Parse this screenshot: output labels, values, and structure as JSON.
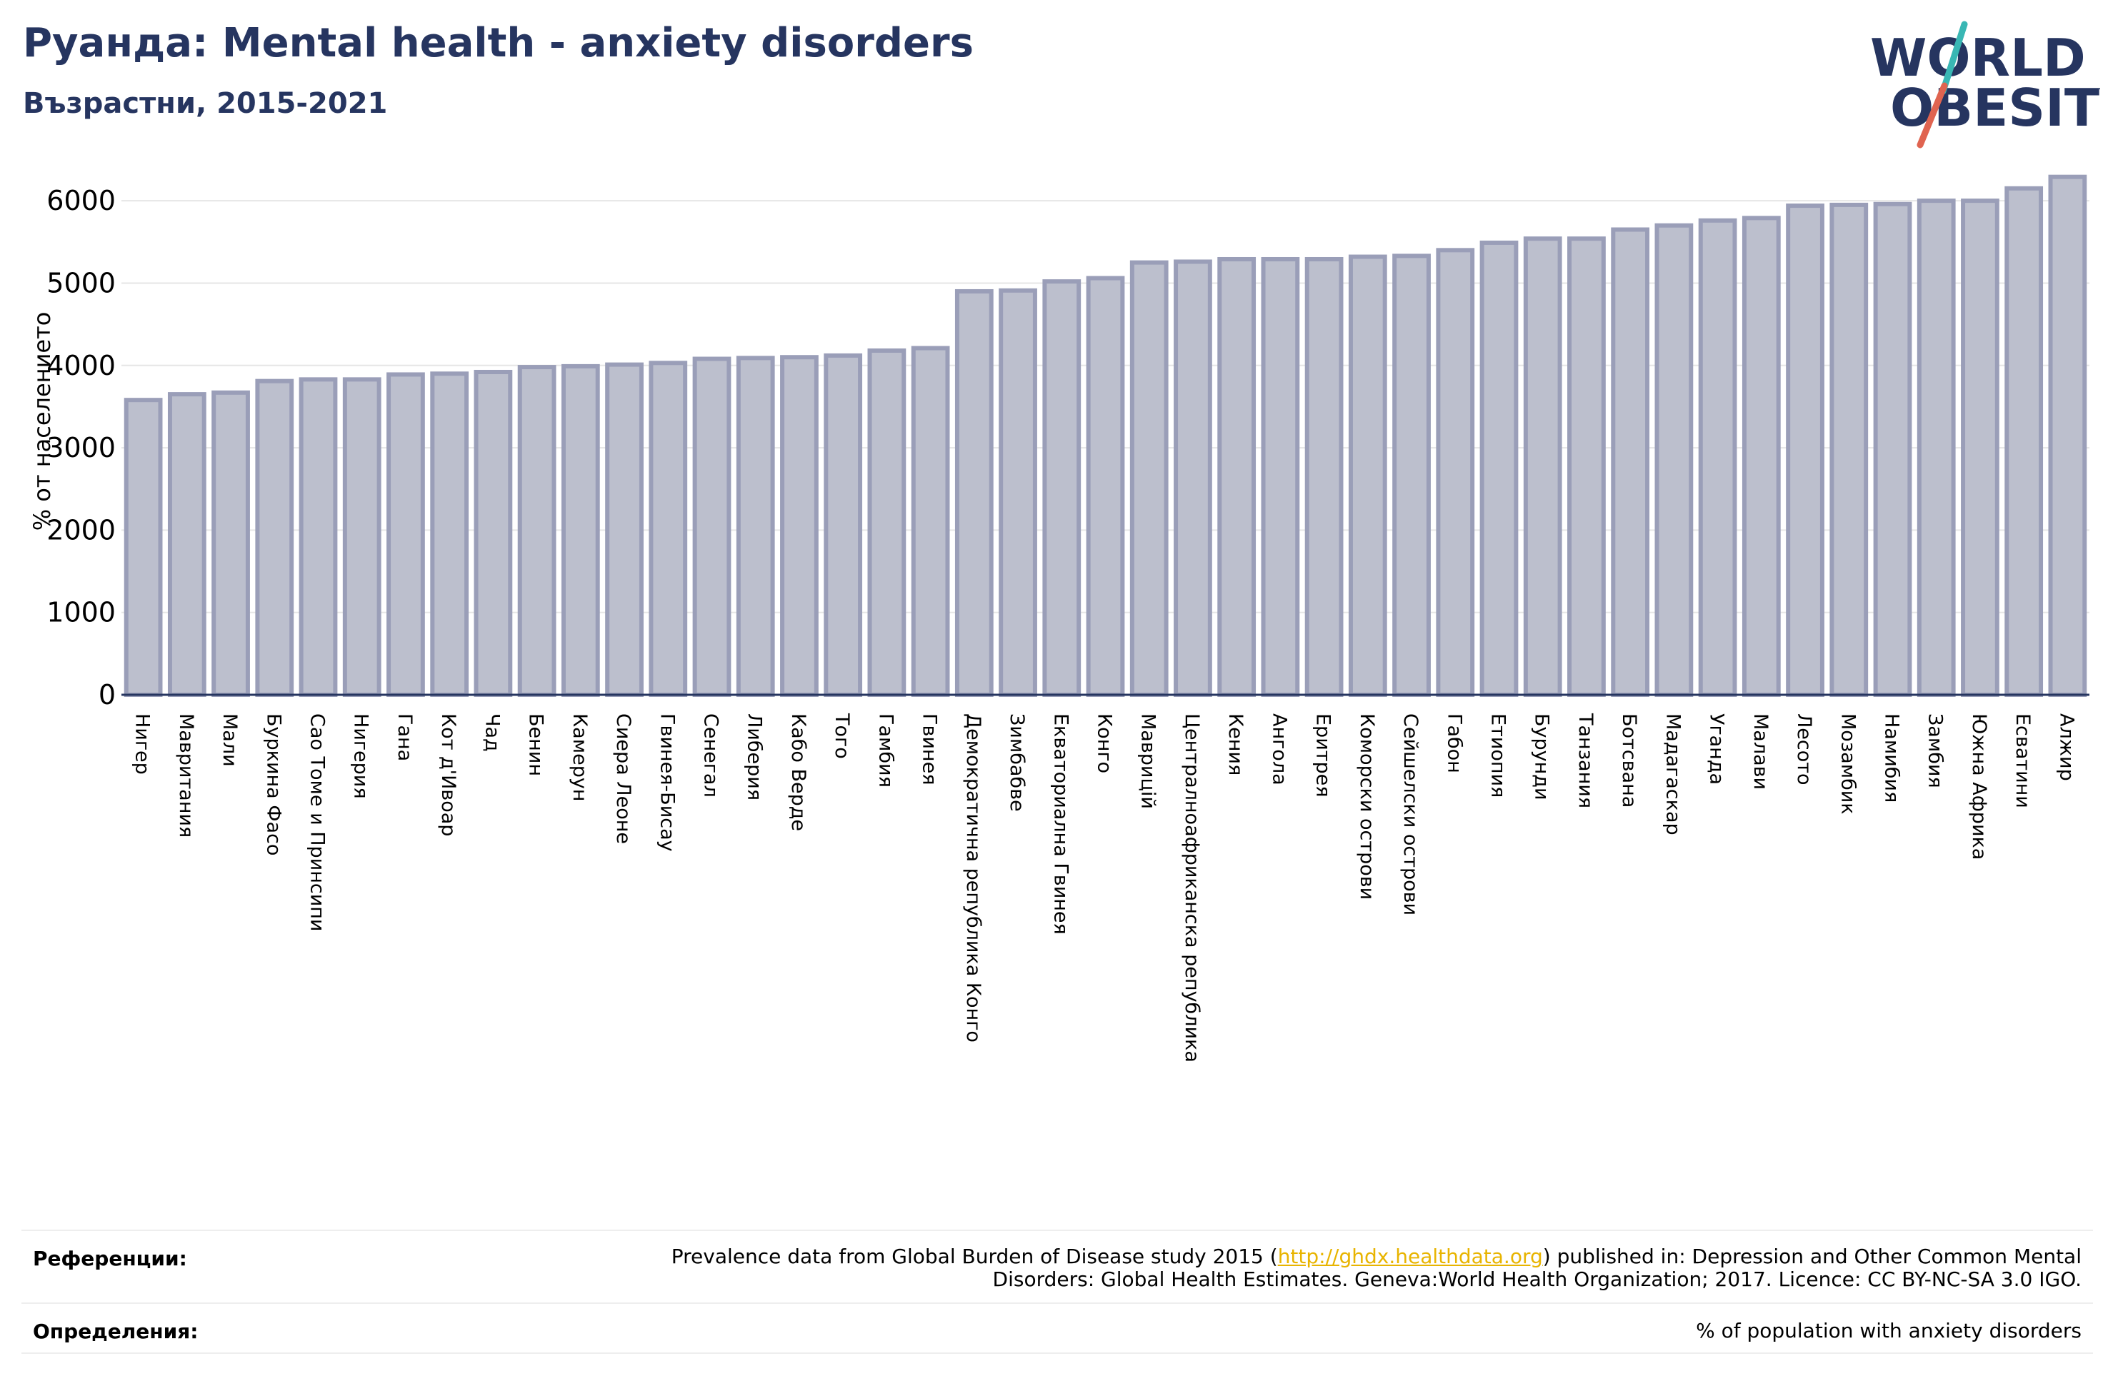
{
  "header": {
    "title": "Руанда: Mental health - anxiety disorders",
    "subtitle": "Възрастни, 2015-2021"
  },
  "logo": {
    "line1": "WORLD",
    "line2": "OBESITY"
  },
  "colors": {
    "bar_fill": "#bcbfcd",
    "bar_stroke": "#9a9eb8",
    "title": "#263560",
    "link": "#e8b400",
    "logo_teal": "#39b7b4",
    "logo_red": "#e06450"
  },
  "chart_data": {
    "type": "bar",
    "title": "Руанда: Mental health - anxiety disorders",
    "subtitle": "Възрастни, 2015-2021",
    "ylabel": "% от населението",
    "ylim": [
      0,
      6400
    ],
    "yticks": [
      0,
      1000,
      2000,
      3000,
      4000,
      5000,
      6000
    ],
    "grid": true,
    "categories": [
      "Нигер",
      "Мавритания",
      "Мали",
      "Буркина Фасо",
      "Сао Томе и Принсипи",
      "Нигерия",
      "Гана",
      "Кот д'Ивоар",
      "Чад",
      "Бенин",
      "Камерун",
      "Сиера Леоне",
      "Гвинея-Бисау",
      "Сенегал",
      "Либерия",
      "Кабо Верде",
      "Того",
      "Гамбия",
      "Гвинея",
      "Демократична република Конго",
      "Зимбабве",
      "Екваториална Гвинея",
      "Конго",
      "Маврицій",
      "Централноафриканска република",
      "Кения",
      "Ангола",
      "Еритрея",
      "Коморски острови",
      "Сейшелски острови",
      "Габон",
      "Етиопия",
      "Бурунди",
      "Танзания",
      "Ботсвана",
      "Мадагаскар",
      "Уганда",
      "Малави",
      "Лесото",
      "Мозамбик",
      "Намибия",
      "Замбия",
      "Южна Африка",
      "Есватини",
      "Алжир"
    ],
    "values": [
      3580,
      3650,
      3670,
      3810,
      3830,
      3830,
      3890,
      3900,
      3920,
      3980,
      3990,
      4010,
      4030,
      4080,
      4090,
      4100,
      4120,
      4180,
      4210,
      4900,
      4910,
      5020,
      5060,
      5250,
      5260,
      5290,
      5290,
      5290,
      5320,
      5330,
      5400,
      5490,
      5540,
      5540,
      5650,
      5700,
      5760,
      5790,
      5940,
      5950,
      5960,
      6000,
      6000,
      6150,
      6290
    ]
  },
  "footer": {
    "references_label": "Референции:",
    "references_pre": "Prevalence data from Global Burden of Disease study 2015 (",
    "references_link": "http://ghdx.healthdata.org",
    "references_post": ") published in: Depression and Other Common Mental",
    "references_line2": "Disorders: Global Health Estimates. Geneva:World Health Organization; 2017. Licence: CC BY-NC-SA 3.0 IGO.",
    "definitions_label": "Определения:",
    "definitions_text": "% of population with anxiety disorders"
  }
}
